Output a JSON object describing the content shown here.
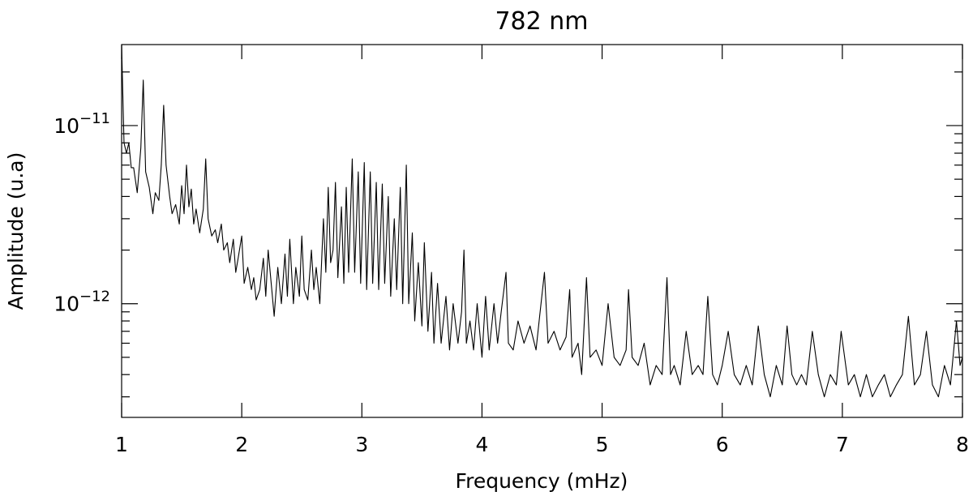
{
  "chart_data": {
    "type": "line",
    "title": "782 nm",
    "x_label": "Frequency (mHz)",
    "y_label": "Amplitude (u.a)",
    "color": "#000000",
    "log_y": true,
    "xlim": [
      1,
      8
    ],
    "xticks": [
      1,
      2,
      3,
      4,
      5,
      6,
      7,
      8
    ],
    "ylim": [
      2.3e-13,
      2.85e-11
    ],
    "yticks": [
      {
        "value": 1e-11,
        "label": "10−11"
      },
      {
        "value": 1e-12,
        "label": "10−12"
      }
    ],
    "yminorticks": [
      3e-13,
      4e-13,
      5e-13,
      6e-13,
      7e-13,
      8e-13,
      9e-13,
      2e-12,
      3e-12,
      4e-12,
      5e-12,
      6e-12,
      7e-12,
      8e-12,
      9e-12,
      2e-11
    ],
    "x": [
      1.0,
      1.02,
      1.04,
      1.06,
      1.08,
      1.1,
      1.13,
      1.16,
      1.18,
      1.2,
      1.23,
      1.26,
      1.28,
      1.31,
      1.33,
      1.35,
      1.37,
      1.4,
      1.42,
      1.45,
      1.48,
      1.5,
      1.52,
      1.54,
      1.56,
      1.58,
      1.6,
      1.62,
      1.65,
      1.68,
      1.7,
      1.72,
      1.75,
      1.78,
      1.8,
      1.83,
      1.85,
      1.88,
      1.9,
      1.93,
      1.95,
      1.97,
      2.0,
      2.02,
      2.05,
      2.08,
      2.1,
      2.12,
      2.15,
      2.18,
      2.2,
      2.22,
      2.25,
      2.27,
      2.3,
      2.33,
      2.36,
      2.38,
      2.4,
      2.43,
      2.45,
      2.48,
      2.5,
      2.52,
      2.55,
      2.58,
      2.6,
      2.62,
      2.65,
      2.68,
      2.7,
      2.72,
      2.74,
      2.76,
      2.78,
      2.8,
      2.83,
      2.85,
      2.87,
      2.89,
      2.92,
      2.94,
      2.97,
      2.99,
      3.02,
      3.04,
      3.07,
      3.09,
      3.12,
      3.14,
      3.17,
      3.19,
      3.22,
      3.24,
      3.27,
      3.29,
      3.32,
      3.34,
      3.37,
      3.39,
      3.42,
      3.44,
      3.47,
      3.5,
      3.52,
      3.55,
      3.58,
      3.6,
      3.63,
      3.66,
      3.7,
      3.73,
      3.76,
      3.8,
      3.83,
      3.85,
      3.87,
      3.9,
      3.93,
      3.96,
      4.0,
      4.03,
      4.06,
      4.1,
      4.13,
      4.16,
      4.2,
      4.22,
      4.26,
      4.3,
      4.35,
      4.4,
      4.45,
      4.48,
      4.52,
      4.55,
      4.6,
      4.65,
      4.7,
      4.73,
      4.75,
      4.8,
      4.83,
      4.87,
      4.9,
      4.95,
      5.0,
      5.05,
      5.1,
      5.15,
      5.2,
      5.22,
      5.25,
      5.3,
      5.35,
      5.4,
      5.45,
      5.5,
      5.54,
      5.57,
      5.6,
      5.65,
      5.7,
      5.75,
      5.8,
      5.84,
      5.88,
      5.92,
      5.96,
      6.0,
      6.05,
      6.1,
      6.15,
      6.2,
      6.25,
      6.3,
      6.35,
      6.4,
      6.45,
      6.5,
      6.54,
      6.58,
      6.62,
      6.66,
      6.7,
      6.75,
      6.8,
      6.85,
      6.9,
      6.95,
      6.99,
      7.05,
      7.1,
      7.15,
      7.2,
      7.25,
      7.3,
      7.35,
      7.4,
      7.45,
      7.5,
      7.55,
      7.6,
      7.65,
      7.7,
      7.75,
      7.8,
      7.85,
      7.9,
      7.95,
      7.98,
      8.0
    ],
    "values": [
      2.8e-11,
      8e-12,
      7e-12,
      8e-12,
      5.8e-12,
      5.8e-12,
      4.2e-12,
      7.5e-12,
      1.8e-11,
      5.5e-12,
      4.5e-12,
      3.2e-12,
      4.2e-12,
      3.8e-12,
      6e-12,
      1.3e-11,
      6e-12,
      4e-12,
      3.2e-12,
      3.6e-12,
      2.8e-12,
      4.6e-12,
      3.2e-12,
      6e-12,
      3.5e-12,
      4.4e-12,
      2.8e-12,
      3.4e-12,
      2.5e-12,
      3.4e-12,
      6.5e-12,
      3e-12,
      2.4e-12,
      2.6e-12,
      2.2e-12,
      2.8e-12,
      2e-12,
      2.2e-12,
      1.7e-12,
      2.3e-12,
      1.5e-12,
      1.8e-12,
      2.4e-12,
      1.3e-12,
      1.6e-12,
      1.2e-12,
      1.4e-12,
      1.05e-12,
      1.2e-12,
      1.8e-12,
      1.1e-12,
      2e-12,
      1.2e-12,
      8.5e-13,
      1.6e-12,
      1e-12,
      1.9e-12,
      1.1e-12,
      2.3e-12,
      1e-12,
      1.6e-12,
      1.1e-12,
      2.4e-12,
      1.2e-12,
      1.05e-12,
      2e-12,
      1.2e-12,
      1.6e-12,
      1e-12,
      3e-12,
      1.5e-12,
      4.5e-12,
      1.7e-12,
      2e-12,
      4.8e-12,
      1.4e-12,
      3.5e-12,
      1.3e-12,
      4.5e-12,
      1.5e-12,
      6.5e-12,
      1.5e-12,
      5.5e-12,
      1.3e-12,
      6.2e-12,
      1.2e-12,
      5.5e-12,
      1.3e-12,
      4.8e-12,
      1.2e-12,
      4.7e-12,
      1.3e-12,
      4e-12,
      1.1e-12,
      3e-12,
      1.2e-12,
      4.5e-12,
      1e-12,
      6e-12,
      1e-12,
      2.5e-12,
      8e-13,
      1.7e-12,
      7.5e-13,
      2.2e-12,
      7e-13,
      1.5e-12,
      6e-13,
      1.3e-12,
      6e-13,
      1.1e-12,
      5.5e-13,
      1e-12,
      6e-13,
      9e-13,
      2e-12,
      6e-13,
      8e-13,
      5.5e-13,
      1e-12,
      5e-13,
      1.1e-12,
      5.5e-13,
      1e-12,
      6e-13,
      9e-13,
      1.5e-12,
      6e-13,
      5.5e-13,
      8e-13,
      6e-13,
      7.5e-13,
      5.5e-13,
      8.5e-13,
      1.5e-12,
      6e-13,
      7e-13,
      5.5e-13,
      6.5e-13,
      1.2e-12,
      5e-13,
      6e-13,
      4e-13,
      1.4e-12,
      5e-13,
      5.5e-13,
      4.5e-13,
      1e-12,
      5e-13,
      4.5e-13,
      5.5e-13,
      1.2e-12,
      5e-13,
      4.5e-13,
      6e-13,
      3.5e-13,
      4.5e-13,
      4e-13,
      1.4e-12,
      4e-13,
      4.5e-13,
      3.5e-13,
      7e-13,
      4e-13,
      4.5e-13,
      4e-13,
      1.1e-12,
      4e-13,
      3.5e-13,
      4.5e-13,
      7e-13,
      4e-13,
      3.5e-13,
      4.5e-13,
      3.5e-13,
      7.5e-13,
      4e-13,
      3e-13,
      4.5e-13,
      3.5e-13,
      7.5e-13,
      4e-13,
      3.5e-13,
      4e-13,
      3.5e-13,
      7e-13,
      4e-13,
      3e-13,
      4e-13,
      3.5e-13,
      7e-13,
      3.5e-13,
      4e-13,
      3e-13,
      4e-13,
      3e-13,
      3.5e-13,
      4e-13,
      3e-13,
      3.5e-13,
      4e-13,
      8.5e-13,
      3.5e-13,
      4e-13,
      7e-13,
      3.5e-13,
      3e-13,
      4.5e-13,
      3.5e-13,
      8e-13,
      4.5e-13,
      5e-13
    ]
  }
}
